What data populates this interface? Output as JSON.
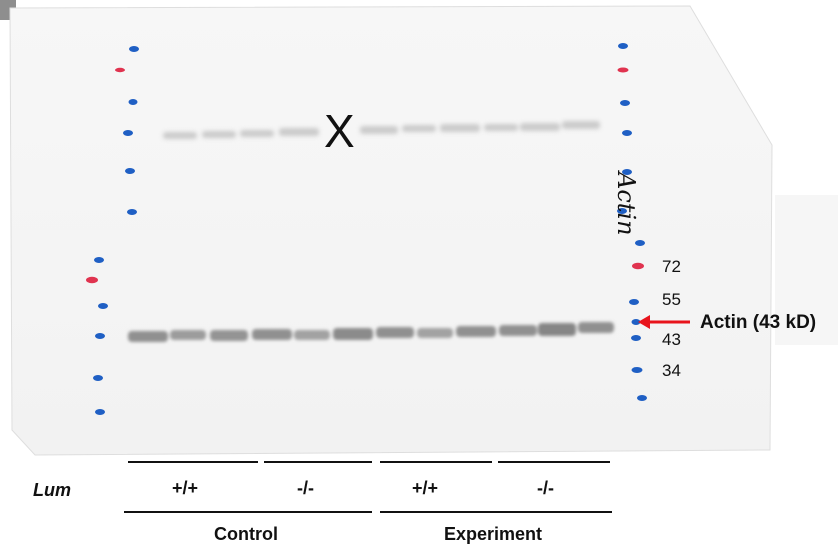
{
  "annotations": {
    "x_mark": "X",
    "handwritten_label": "Actin",
    "target_label": "Actin (43 kD)"
  },
  "marker_weights": [
    "72",
    "55",
    "43",
    "34"
  ],
  "lanes": {
    "row_label": "Lum",
    "genotypes": [
      "+/+",
      "-/-",
      "+/+",
      "-/-"
    ],
    "groups": [
      "Control",
      "Experiment"
    ]
  },
  "colors": {
    "marker_blue": "#1f5fc4",
    "marker_red": "#e0334f",
    "arrow_red": "#e8141c",
    "band_gray": "#8a8a8a",
    "membrane": "#f5f5f5"
  }
}
